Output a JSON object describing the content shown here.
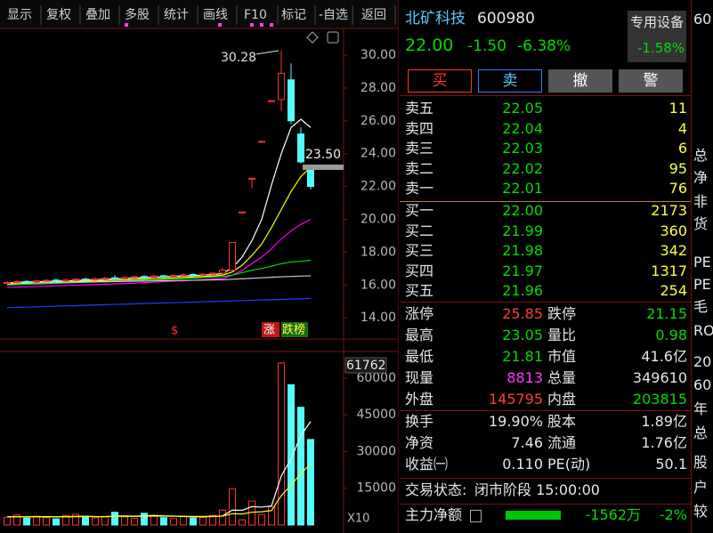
{
  "toolbar": [
    "显示",
    "复权",
    "叠加",
    "多股",
    "统计",
    "画线",
    "F10",
    "标记",
    "-自选",
    "返回"
  ],
  "chart_data": [
    {
      "type": "candlestick",
      "ylim": [
        12.87,
        31.74
      ],
      "yticks": [
        {
          "value": 14,
          "label": "14.00"
        },
        {
          "value": 16,
          "label": "16.00"
        },
        {
          "value": 18,
          "label": "18.00"
        },
        {
          "value": 20,
          "label": "20.00"
        },
        {
          "value": 22,
          "label": "22.00"
        },
        {
          "value": 24,
          "label": "24.00"
        },
        {
          "value": 26,
          "label": "26.00"
        },
        {
          "value": 28,
          "label": "28.00"
        },
        {
          "value": 30,
          "label": "30.00"
        }
      ],
      "up_color": "#ff3232",
      "down_color": "#54ffff",
      "open": [
        16.1,
        16.15,
        16.22,
        16.18,
        16.25,
        16.3,
        16.24,
        16.3,
        16.36,
        16.32,
        16.38,
        16.44,
        16.4,
        16.45,
        16.52,
        16.48,
        16.56,
        16.52,
        16.58,
        16.64,
        16.6,
        16.66,
        16.72,
        16.9,
        20.45,
        22.5,
        24.75,
        27.23,
        27.3,
        28.5,
        25.2,
        23.0
      ],
      "high": [
        16.23,
        16.28,
        16.3,
        16.33,
        16.36,
        16.38,
        16.38,
        16.43,
        16.44,
        16.46,
        16.5,
        16.6,
        16.53,
        16.58,
        16.6,
        16.63,
        16.64,
        16.66,
        16.7,
        16.72,
        16.74,
        16.8,
        17.05,
        18.59,
        20.45,
        22.5,
        24.75,
        27.23,
        30.28,
        29.5,
        25.6,
        23.05
      ],
      "low": [
        16.03,
        16.08,
        16.11,
        16.11,
        16.18,
        16.17,
        16.17,
        16.23,
        16.25,
        16.25,
        16.31,
        16.33,
        16.33,
        16.38,
        16.41,
        16.41,
        16.45,
        16.45,
        16.51,
        16.53,
        16.53,
        16.59,
        16.65,
        16.85,
        20.45,
        21.9,
        24.75,
        27.23,
        26.6,
        25.8,
        23.41,
        21.81
      ],
      "close": [
        16.15,
        16.2,
        16.18,
        16.25,
        16.28,
        16.24,
        16.3,
        16.35,
        16.32,
        16.38,
        16.42,
        16.4,
        16.45,
        16.5,
        16.48,
        16.55,
        16.52,
        16.58,
        16.62,
        16.6,
        16.66,
        16.72,
        16.9,
        18.59,
        20.45,
        22.5,
        24.75,
        27.23,
        28.9,
        26.01,
        23.5,
        22.0
      ],
      "series": [
        {
          "color": "#ffffff",
          "values": [
            16.12,
            16.16,
            16.18,
            16.2,
            16.21,
            16.23,
            16.25,
            16.28,
            16.3,
            16.32,
            16.35,
            16.37,
            16.39,
            16.43,
            16.45,
            16.48,
            16.5,
            16.53,
            16.55,
            16.57,
            16.6,
            16.64,
            16.7,
            17.05,
            17.7,
            18.7,
            20.0,
            22.1,
            24.0,
            25.6,
            26.1,
            25.6
          ]
        },
        {
          "color": "#ffff00",
          "values": [
            16.05,
            16.08,
            16.1,
            16.12,
            16.14,
            16.16,
            16.18,
            16.2,
            16.23,
            16.25,
            16.27,
            16.29,
            16.31,
            16.34,
            16.36,
            16.39,
            16.41,
            16.44,
            16.46,
            16.49,
            16.52,
            16.55,
            16.6,
            16.8,
            17.2,
            17.8,
            18.5,
            19.5,
            20.6,
            21.7,
            22.6,
            23.2
          ]
        },
        {
          "color": "#ff00ff",
          "values": [
            15.85,
            15.87,
            15.89,
            15.91,
            15.93,
            15.95,
            15.97,
            15.99,
            16.01,
            16.03,
            16.05,
            16.07,
            16.09,
            16.11,
            16.14,
            16.17,
            16.2,
            16.23,
            16.26,
            16.29,
            16.32,
            16.36,
            16.4,
            16.6,
            16.9,
            17.3,
            17.7,
            18.2,
            18.8,
            19.3,
            19.7,
            20.0
          ]
        },
        {
          "color": "#00e000",
          "values": [
            16.0,
            16.02,
            16.04,
            16.06,
            16.08,
            16.1,
            16.12,
            16.14,
            16.16,
            16.18,
            16.2,
            16.22,
            16.24,
            16.26,
            16.28,
            16.3,
            16.33,
            16.36,
            16.39,
            16.42,
            16.45,
            16.48,
            16.52,
            16.6,
            16.75,
            16.9,
            17.0,
            17.15,
            17.3,
            17.4,
            17.45,
            17.5
          ]
        },
        {
          "color": "#c8c8c8",
          "values": [
            16.1,
            16.11,
            16.12,
            16.13,
            16.14,
            16.15,
            16.16,
            16.17,
            16.18,
            16.19,
            16.2,
            16.21,
            16.22,
            16.23,
            16.24,
            16.25,
            16.26,
            16.27,
            16.28,
            16.29,
            16.3,
            16.31,
            16.32,
            16.35,
            16.38,
            16.41,
            16.44,
            16.47,
            16.5,
            16.52,
            16.54,
            16.56
          ]
        },
        {
          "color": "#1e3cff",
          "values": [
            14.62,
            14.64,
            14.65,
            14.67,
            14.69,
            14.71,
            14.73,
            14.74,
            14.76,
            14.78,
            14.8,
            14.82,
            14.83,
            14.85,
            14.87,
            14.89,
            14.91,
            14.92,
            14.94,
            14.96,
            14.98,
            15.0,
            15.01,
            15.03,
            15.05,
            15.07,
            15.09,
            15.1,
            15.12,
            15.14,
            15.16,
            15.18
          ]
        }
      ],
      "high_label": {
        "value": 30.28,
        "label": "30.28"
      },
      "prev_close": {
        "value": 23.5,
        "label": "23.50"
      },
      "markers": [
        "$",
        "涨",
        "跌榜"
      ]
    },
    {
      "type": "bar",
      "ylim": [
        0,
        69800
      ],
      "yticks": [
        15000,
        30000,
        45000,
        60000
      ],
      "values": [
        3200,
        4100,
        2800,
        3600,
        3000,
        2500,
        3900,
        4400,
        3100,
        2900,
        3500,
        5200,
        3300,
        2700,
        4800,
        3600,
        3000,
        2600,
        3400,
        2800,
        3100,
        3900,
        6100,
        14800,
        2100,
        9800,
        4300,
        7400,
        66200,
        57300,
        48100,
        34961
      ],
      "series": [
        {
          "color": "#ffffff",
          "values": [
            3300,
            3400,
            3300,
            3350,
            3400,
            3300,
            3350,
            3500,
            3600,
            3450,
            3400,
            3650,
            3700,
            3600,
            3800,
            3900,
            3750,
            3650,
            3500,
            3300,
            3400,
            3450,
            3700,
            6100,
            6000,
            7500,
            7300,
            7800,
            20000,
            27100,
            36500,
            42300
          ]
        },
        {
          "color": "#ffff00",
          "values": [
            3350,
            3380,
            3350,
            3360,
            3380,
            3360,
            3370,
            3420,
            3460,
            3430,
            3400,
            3480,
            3520,
            3520,
            3600,
            3660,
            3620,
            3580,
            3550,
            3500,
            3520,
            3550,
            3620,
            4600,
            4500,
            5200,
            5400,
            5900,
            12000,
            16300,
            21000,
            25000
          ]
        }
      ],
      "top_label": "61762",
      "scale_label": "X10"
    }
  ],
  "quote": {
    "name": "北矿科技",
    "code": "600980",
    "price": "22.00",
    "change": "-1.50",
    "change_pct": "-6.38%",
    "sector": "专用设备",
    "sector_change": "-1.58%"
  },
  "buttons": [
    "买",
    "卖",
    "撤",
    "警"
  ],
  "order_book": {
    "asks": [
      [
        "卖五",
        "22.05",
        "11"
      ],
      [
        "卖四",
        "22.04",
        "4"
      ],
      [
        "卖三",
        "22.03",
        "6"
      ],
      [
        "卖二",
        "22.02",
        "95"
      ],
      [
        "卖一",
        "22.01",
        "76"
      ]
    ],
    "bids": [
      [
        "买一",
        "22.00",
        "2173"
      ],
      [
        "买二",
        "21.99",
        "360"
      ],
      [
        "买三",
        "21.98",
        "342"
      ],
      [
        "买四",
        "21.97",
        "1317"
      ],
      [
        "买五",
        "21.96",
        "254"
      ]
    ]
  },
  "stats": [
    [
      "涨停",
      "25.85",
      "跌停",
      "21.15"
    ],
    [
      "最高",
      "23.05",
      "量比",
      "0.98"
    ],
    [
      "最低",
      "21.81",
      "市值",
      "41.6亿"
    ],
    [
      "现量",
      "8813",
      "总量",
      "349610"
    ],
    [
      "外盘",
      "145795",
      "内盘",
      "203815"
    ]
  ],
  "stats2": [
    [
      "换手",
      "19.90%",
      "股本",
      "1.89亿"
    ],
    [
      "净资",
      "7.46",
      "流通",
      "1.76亿"
    ],
    [
      "收益㈠",
      "0.110",
      "PE(动)",
      "50.1"
    ]
  ],
  "trade_status": {
    "label": "交易状态:",
    "value": "闭市阶段 15:00:00"
  },
  "main_force": {
    "label": "主力净额",
    "amount": "-1562万",
    "pct": "-2%"
  },
  "side_column": [
    "60",
    "总",
    "净",
    "非",
    "货",
    "PE",
    "PE",
    "毛",
    "RO",
    "20",
    "60",
    "年",
    "总",
    "股",
    "户",
    "较"
  ]
}
